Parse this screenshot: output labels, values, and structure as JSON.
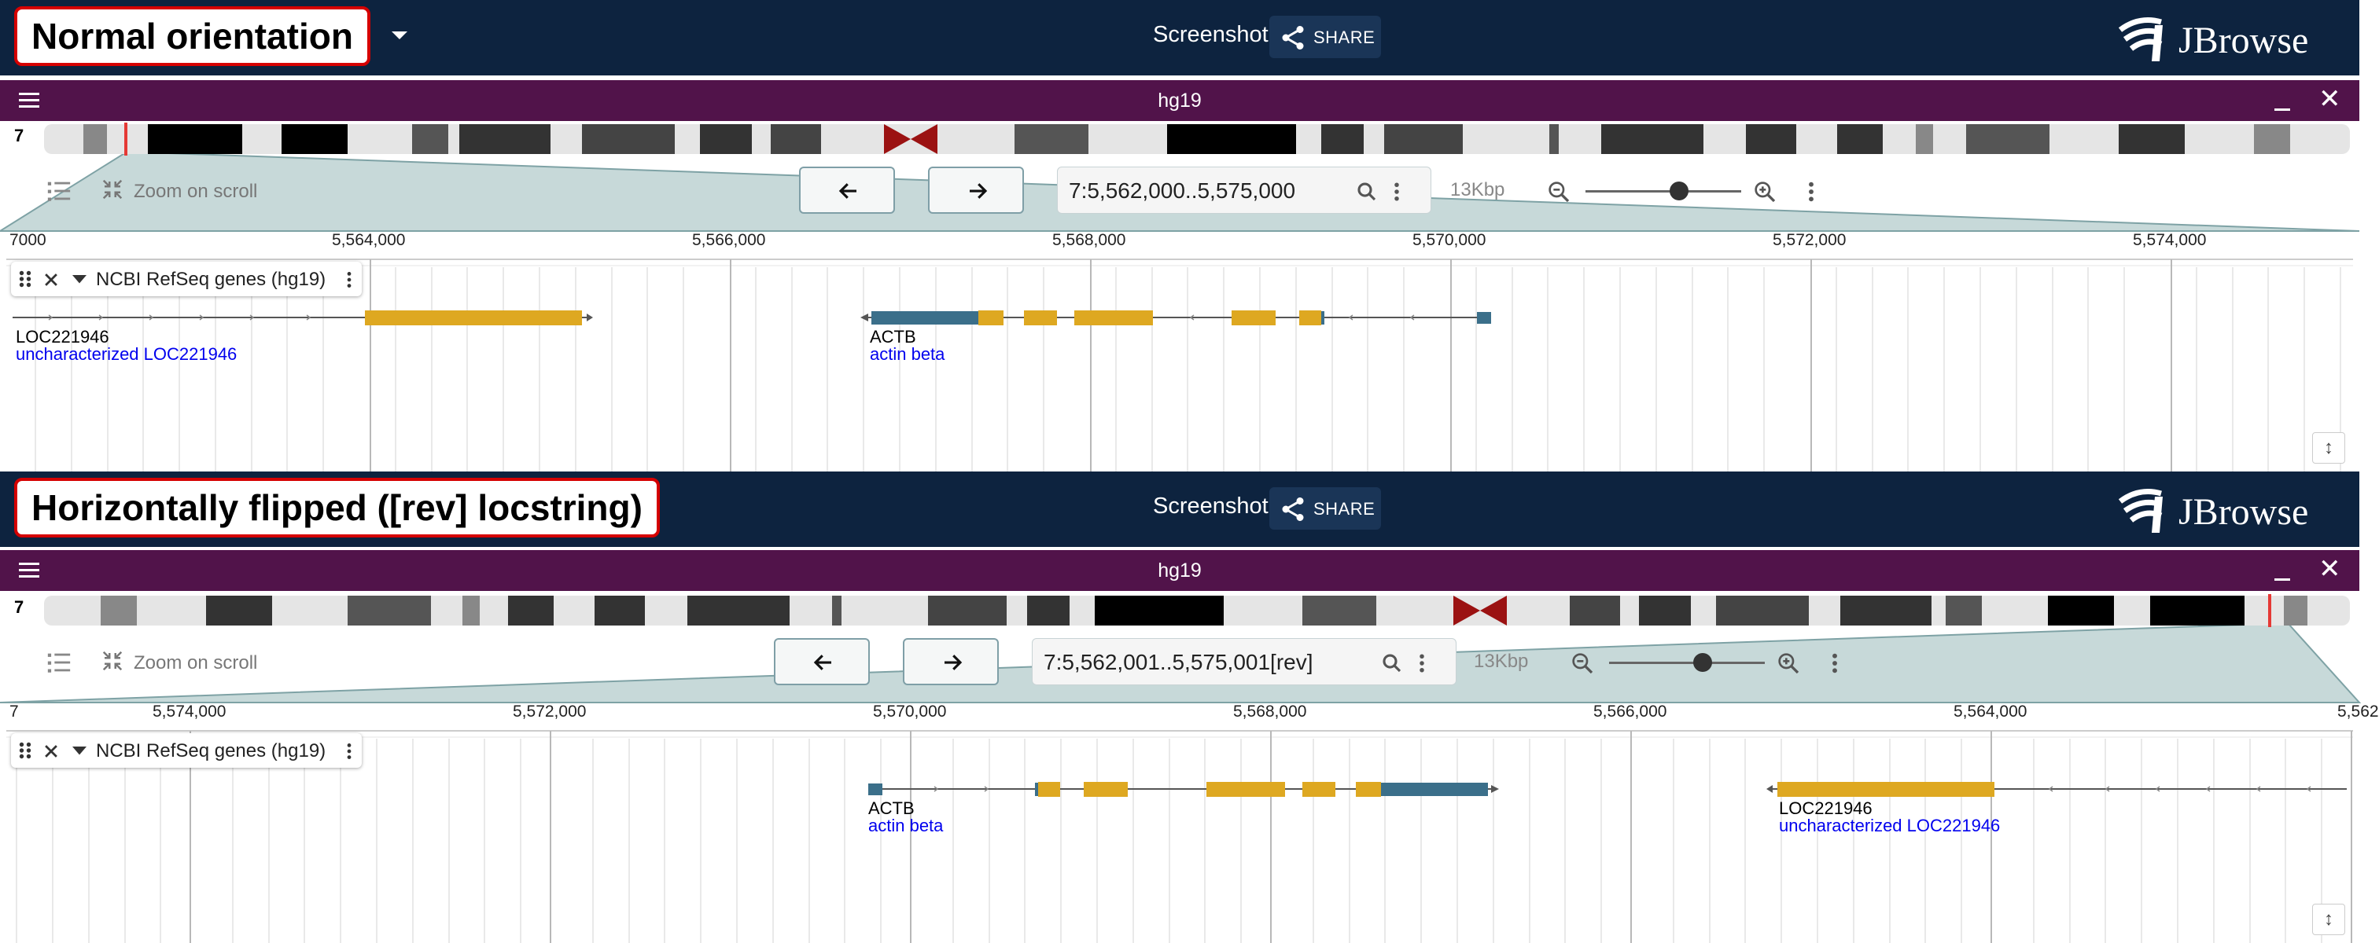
{
  "panels": [
    {
      "title": "Normal orientation",
      "screenshot_label": "Screenshot",
      "share_label": "SHARE",
      "brand": "JBrowse",
      "assembly": "hg19",
      "chromosome": "7",
      "zoom_on_scroll": "Zoom on scroll",
      "locstring": "7:5,562,000..5,575,000",
      "bp_per_view": "13Kbp",
      "zoom_level": 0.6,
      "ruler": {
        "start_label": "7000",
        "ticks": [
          "5,564,000",
          "5,566,000",
          "5,568,000",
          "5,570,000",
          "5,572,000",
          "5,574,000"
        ]
      },
      "track_name": "NCBI RefSeq genes (hg19)",
      "features": [
        {
          "name": "LOC221946",
          "description": "uncharacterized LOC221946"
        },
        {
          "name": "ACTB",
          "description": "actin beta"
        }
      ],
      "resize_icon": "↕"
    },
    {
      "title": "Horizontally flipped ([rev] locstring)",
      "screenshot_label": "Screenshot",
      "share_label": "SHARE",
      "brand": "JBrowse",
      "assembly": "hg19",
      "chromosome": "7",
      "zoom_on_scroll": "Zoom on scroll",
      "locstring": "7:5,562,001..5,575,001[rev]",
      "bp_per_view": "13Kbp",
      "zoom_level": 0.6,
      "ruler": {
        "start_label": "7",
        "ticks": [
          "5,574,000",
          "5,572,000",
          "5,570,000",
          "5,568,000",
          "5,566,000",
          "5,564,000"
        ],
        "end_label": "5,562"
      },
      "track_name": "NCBI RefSeq genes (hg19)",
      "features": [
        {
          "name": "ACTB",
          "description": "actin beta"
        },
        {
          "name": "LOC221946",
          "description": "uncharacterized LOC221946"
        }
      ],
      "resize_icon": "↕"
    }
  ],
  "colors": {
    "app_bar": "#0d233f",
    "view_header": "#51134a",
    "title_border": "#d50000",
    "utr": "#3b6f8a",
    "cds": "#dea821",
    "overview_region": "#c7d9d9",
    "centromere": "#9b1212",
    "link": "#0000ee"
  },
  "icons": [
    "hamburger-icon",
    "share-icon",
    "jbrowse-logo-icon",
    "minimize-icon",
    "close-icon",
    "track-list-icon",
    "zoom-on-scroll-icon",
    "back-arrow-icon",
    "forward-arrow-icon",
    "search-icon",
    "kebab-menu-icon",
    "zoom-out-icon",
    "zoom-in-icon",
    "drag-handle-icon",
    "chevron-down-icon",
    "resize-icon"
  ]
}
